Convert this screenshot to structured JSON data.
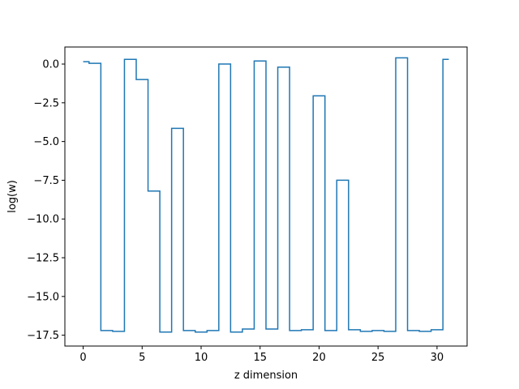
{
  "chart_data": {
    "type": "line",
    "drawstyle": "steps-mid",
    "title": "",
    "xlabel": "z dimension",
    "ylabel": "log(w)",
    "xlim": [
      -1.55,
      32.55
    ],
    "ylim": [
      -18.2,
      1.1
    ],
    "x_ticks": [
      0,
      5,
      10,
      15,
      20,
      25,
      30
    ],
    "x_tick_labels": [
      "0",
      "5",
      "10",
      "15",
      "20",
      "25",
      "30"
    ],
    "y_ticks": [
      0.0,
      -2.5,
      -5.0,
      -7.5,
      -10.0,
      -12.5,
      -15.0,
      -17.5
    ],
    "y_tick_labels": [
      "0.0",
      "−2.5",
      "−5.0",
      "−7.5",
      "−10.0",
      "−12.5",
      "−15.0",
      "−17.5"
    ],
    "grid": false,
    "legend": "none",
    "series": [
      {
        "color": "#1f77b4",
        "x": [
          0,
          1,
          2,
          3,
          4,
          5,
          6,
          7,
          8,
          9,
          10,
          11,
          12,
          13,
          14,
          15,
          16,
          17,
          18,
          19,
          20,
          21,
          22,
          23,
          24,
          25,
          26,
          27,
          28,
          29,
          30,
          31
        ],
        "values": [
          0.15,
          0.05,
          -17.2,
          -17.25,
          0.3,
          -1.0,
          -8.2,
          -17.3,
          -4.15,
          -17.2,
          -17.3,
          -17.2,
          0.0,
          -17.3,
          -17.1,
          0.2,
          -17.1,
          -0.2,
          -17.2,
          -17.15,
          -2.05,
          -17.2,
          -7.5,
          -17.15,
          -17.25,
          -17.2,
          -17.25,
          0.4,
          -17.2,
          -17.25,
          -17.15,
          0.3
        ]
      }
    ]
  }
}
